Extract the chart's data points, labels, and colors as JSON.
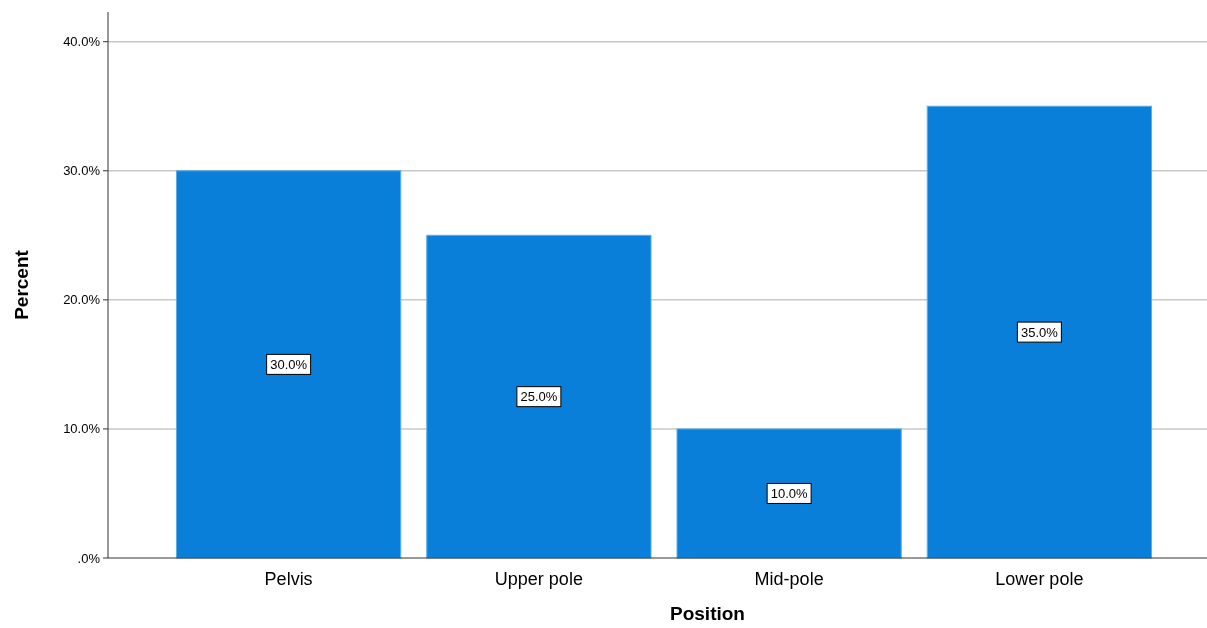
{
  "chart_data": {
    "type": "bar",
    "xlabel": "Position",
    "ylabel": "Percent",
    "categories": [
      "Pelvis",
      "Upper pole",
      "Mid-pole",
      "Lower pole"
    ],
    "values": [
      30,
      25,
      10,
      35
    ],
    "value_labels": [
      "30.0%",
      "25.0%",
      "10.0%",
      "35.0%"
    ],
    "color": "#0a7fd9",
    "ylim": [
      0,
      42.3
    ],
    "yticks": [
      {
        "value": 0,
        "label": ".0%"
      },
      {
        "value": 10,
        "label": "10.0%"
      },
      {
        "value": 20,
        "label": "20.0%"
      },
      {
        "value": 30,
        "label": "30.0%"
      },
      {
        "value": 40,
        "label": "40.0%"
      }
    ],
    "grid": "y"
  }
}
